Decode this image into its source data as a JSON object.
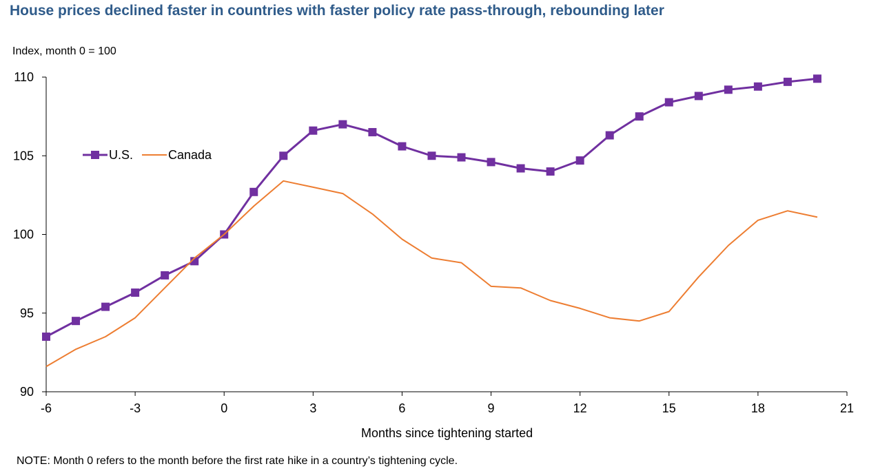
{
  "chart_data": {
    "type": "line",
    "title": "House prices declined faster in countries with faster policy rate pass-through, rebounding later",
    "ylabel": "Index, month 0 = 100",
    "xlabel": "Months since tightening started",
    "note": "NOTE: Month 0 refers to the month before the first rate hike in a country’s tightening cycle.",
    "xlim": [
      -6,
      21
    ],
    "ylim": [
      90,
      110
    ],
    "x_ticks": [
      -6,
      -3,
      0,
      3,
      6,
      9,
      12,
      15,
      18,
      21
    ],
    "y_ticks": [
      90,
      95,
      100,
      105,
      110
    ],
    "x_tick_labels": [
      "-6",
      "-3",
      "0",
      "3",
      "6",
      "9",
      "12",
      "15",
      "18",
      "21"
    ],
    "y_tick_labels": [
      "90",
      "95",
      "100",
      "105",
      "110"
    ],
    "grid": false,
    "legend_position": "left",
    "x": [
      -6,
      -5,
      -4,
      -3,
      -2,
      -1,
      0,
      1,
      2,
      3,
      4,
      5,
      6,
      7,
      8,
      9,
      10,
      11,
      12,
      13,
      14,
      15,
      16,
      17,
      18,
      19,
      20
    ],
    "series": [
      {
        "name": "U.S.",
        "color": "#7030a0",
        "marker": "square",
        "values": [
          93.5,
          94.5,
          95.4,
          96.3,
          97.4,
          98.3,
          100.0,
          102.7,
          105.0,
          106.6,
          107.0,
          106.5,
          105.6,
          105.0,
          104.9,
          104.6,
          104.2,
          104.0,
          104.7,
          106.3,
          107.5,
          108.4,
          108.8,
          109.2,
          109.4,
          109.7,
          109.9
        ]
      },
      {
        "name": "Canada",
        "color": "#ed7d31",
        "marker": "none",
        "values": [
          91.6,
          92.7,
          93.5,
          94.7,
          96.6,
          98.5,
          100.0,
          101.8,
          103.4,
          103.0,
          102.6,
          101.3,
          99.7,
          98.5,
          98.2,
          96.7,
          96.6,
          95.8,
          95.3,
          94.7,
          94.5,
          95.1,
          97.3,
          99.3,
          100.9,
          101.5,
          101.1
        ]
      }
    ]
  }
}
